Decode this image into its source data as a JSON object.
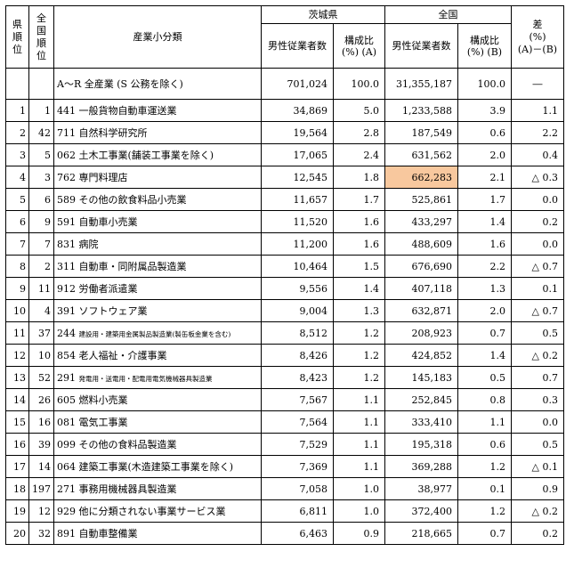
{
  "header": {
    "pref_rank": "県\n順\n位",
    "nat_rank": "全\n国\n順\n位",
    "industry": "産業小分類",
    "ibaraki": "茨城県",
    "national": "全国",
    "diff_title": "差\n(%)\n(A)－(B)",
    "male_employees": "男性従業者数",
    "ratio_a": "構成比\n(%) (A)",
    "ratio_b": "構成比\n(%) (B)"
  },
  "total": {
    "industry": "A～R 全産業 (S 公務を除く)",
    "ibaraki_count": "701,024",
    "ibaraki_ratio": "100.0",
    "national_count": "31,355,187",
    "national_ratio": "100.0",
    "diff": "―"
  },
  "rows": [
    {
      "rank": "1",
      "nat": "1",
      "industry": "441 一般貨物自動車運送業",
      "small": false,
      "ib": "34,869",
      "ra": "5.0",
      "nt": "1,233,588",
      "rb": "3.9",
      "diff": "1.1",
      "hl": false
    },
    {
      "rank": "2",
      "nat": "42",
      "industry": "711 自然科学研究所",
      "small": false,
      "ib": "19,564",
      "ra": "2.8",
      "nt": "187,549",
      "rb": "0.6",
      "diff": "2.2",
      "hl": false
    },
    {
      "rank": "3",
      "nat": "5",
      "industry": "062 土木工事業(舗装工事業を除く)",
      "small": false,
      "ib": "17,065",
      "ra": "2.4",
      "nt": "631,562",
      "rb": "2.0",
      "diff": "0.4",
      "hl": false
    },
    {
      "rank": "4",
      "nat": "3",
      "industry": "762 専門料理店",
      "small": false,
      "ib": "12,545",
      "ra": "1.8",
      "nt": "662,283",
      "rb": "2.1",
      "diff": "△ 0.3",
      "hl": true
    },
    {
      "rank": "5",
      "nat": "6",
      "industry": "589 その他の飲食料品小売業",
      "small": false,
      "ib": "11,657",
      "ra": "1.7",
      "nt": "525,861",
      "rb": "1.7",
      "diff": "0.0",
      "hl": false
    },
    {
      "rank": "6",
      "nat": "9",
      "industry": "591 自動車小売業",
      "small": false,
      "ib": "11,520",
      "ra": "1.6",
      "nt": "433,297",
      "rb": "1.4",
      "diff": "0.2",
      "hl": false
    },
    {
      "rank": "7",
      "nat": "7",
      "industry": "831 病院",
      "small": false,
      "ib": "11,200",
      "ra": "1.6",
      "nt": "488,609",
      "rb": "1.6",
      "diff": "0.0",
      "hl": false
    },
    {
      "rank": "8",
      "nat": "2",
      "industry": "311 自動車・同附属品製造業",
      "small": false,
      "ib": "10,464",
      "ra": "1.5",
      "nt": "676,690",
      "rb": "2.2",
      "diff": "△ 0.7",
      "hl": false
    },
    {
      "rank": "9",
      "nat": "11",
      "industry": "912 労働者派遣業",
      "small": false,
      "ib": "9,556",
      "ra": "1.4",
      "nt": "407,118",
      "rb": "1.3",
      "diff": "0.1",
      "hl": false
    },
    {
      "rank": "10",
      "nat": "4",
      "industry": "391 ソフトウェア業",
      "small": false,
      "ib": "9,004",
      "ra": "1.3",
      "nt": "632,871",
      "rb": "2.0",
      "diff": "△ 0.7",
      "hl": false
    },
    {
      "rank": "11",
      "nat": "37",
      "industry_code": "244",
      "industry_name": "建設用・建築用金属製品製造業(製缶板金業を含む)",
      "small": true,
      "ib": "8,512",
      "ra": "1.2",
      "nt": "208,923",
      "rb": "0.7",
      "diff": "0.5",
      "hl": false
    },
    {
      "rank": "12",
      "nat": "10",
      "industry": "854 老人福祉・介護事業",
      "small": false,
      "ib": "8,426",
      "ra": "1.2",
      "nt": "424,852",
      "rb": "1.4",
      "diff": "△ 0.2",
      "hl": false
    },
    {
      "rank": "13",
      "nat": "52",
      "industry_code": "291",
      "industry_name": "発電用・送電用・配電用電気機械器具製造業",
      "small": true,
      "ib": "8,423",
      "ra": "1.2",
      "nt": "145,183",
      "rb": "0.5",
      "diff": "0.7",
      "hl": false
    },
    {
      "rank": "14",
      "nat": "26",
      "industry": "605 燃料小売業",
      "small": false,
      "ib": "7,567",
      "ra": "1.1",
      "nt": "252,845",
      "rb": "0.8",
      "diff": "0.3",
      "hl": false
    },
    {
      "rank": "15",
      "nat": "16",
      "industry": "081 電気工事業",
      "small": false,
      "ib": "7,564",
      "ra": "1.1",
      "nt": "333,410",
      "rb": "1.1",
      "diff": "0.0",
      "hl": false
    },
    {
      "rank": "16",
      "nat": "39",
      "industry": "099 その他の食料品製造業",
      "small": false,
      "ib": "7,529",
      "ra": "1.1",
      "nt": "195,318",
      "rb": "0.6",
      "diff": "0.5",
      "hl": false
    },
    {
      "rank": "17",
      "nat": "14",
      "industry": "064 建築工事業(木造建築工事業を除く)",
      "small": false,
      "ib": "7,369",
      "ra": "1.1",
      "nt": "369,288",
      "rb": "1.2",
      "diff": "△ 0.1",
      "hl": false
    },
    {
      "rank": "18",
      "nat": "197",
      "industry": "271 事務用機械器具製造業",
      "small": false,
      "ib": "7,058",
      "ra": "1.0",
      "nt": "38,977",
      "rb": "0.1",
      "diff": "0.9",
      "hl": false
    },
    {
      "rank": "19",
      "nat": "12",
      "industry": "929 他に分類されない事業サービス業",
      "small": false,
      "ib": "6,811",
      "ra": "1.0",
      "nt": "372,400",
      "rb": "1.2",
      "diff": "△ 0.2",
      "hl": false
    },
    {
      "rank": "20",
      "nat": "32",
      "industry": "891 自動車整備業",
      "small": false,
      "ib": "6,463",
      "ra": "0.9",
      "nt": "218,665",
      "rb": "0.7",
      "diff": "0.2",
      "hl": false
    }
  ],
  "colors": {
    "highlight": "#f8c89e",
    "border": "#000000"
  }
}
